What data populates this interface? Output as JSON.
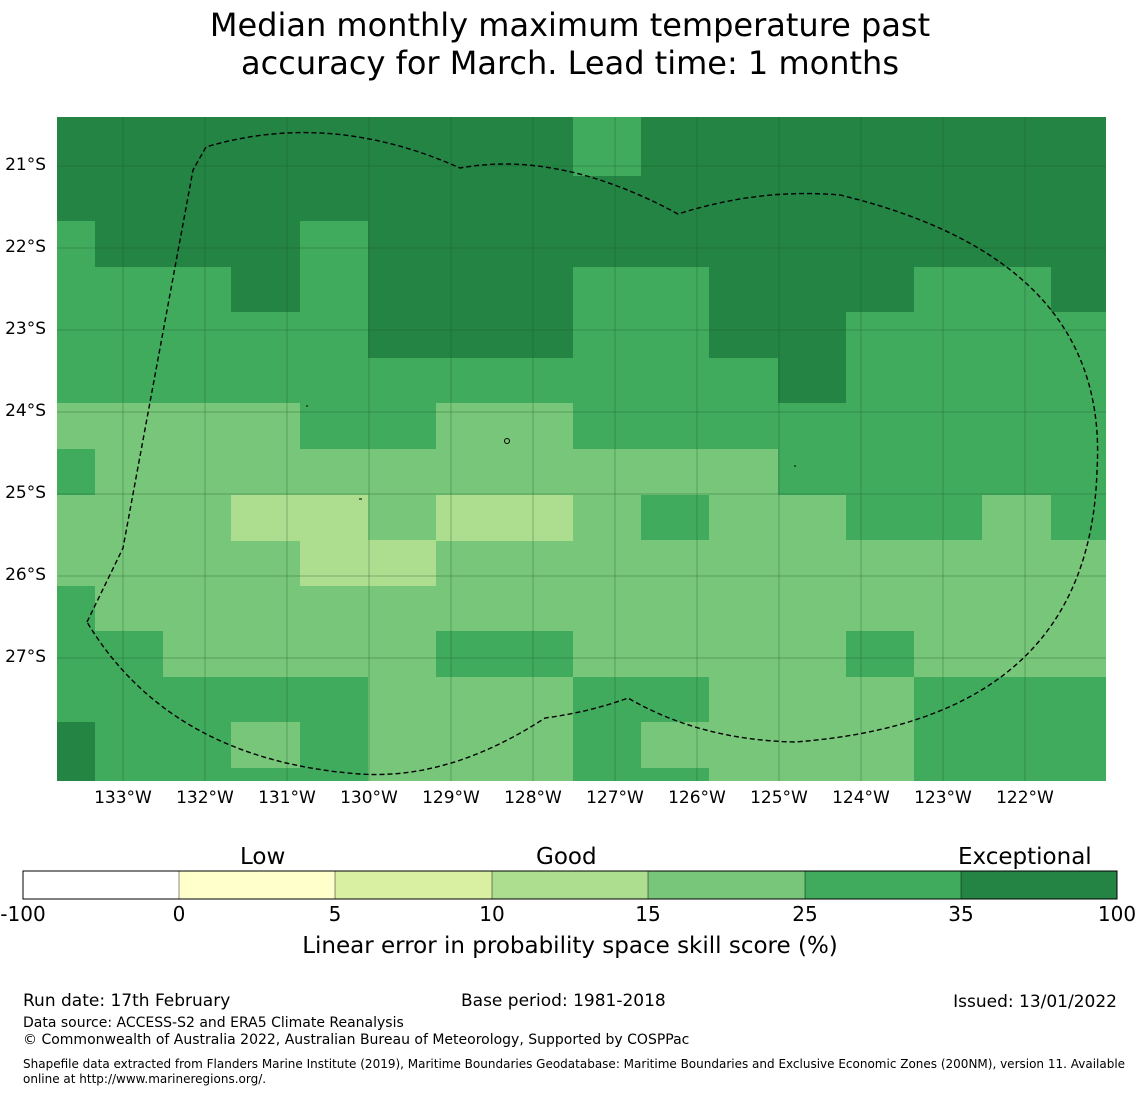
{
  "title": {
    "line1": "Median monthly maximum temperature past",
    "line2": "accuracy for March. Lead time: 1 months"
  },
  "map": {
    "lat_labels": [
      "21°S",
      "22°S",
      "23°S",
      "24°S",
      "25°S",
      "26°S",
      "27°S"
    ],
    "lon_labels": [
      "133°W",
      "132°W",
      "131°W",
      "130°W",
      "129°W",
      "128°W",
      "127°W",
      "126°W",
      "125°W",
      "124°W",
      "123°W",
      "122°W"
    ],
    "boundary": "Exclusive Economic Zone boundary (dashed)"
  },
  "colorbar": {
    "words": [
      "Low",
      "Good",
      "Exceptional"
    ],
    "ticks": [
      "-100",
      "0",
      "5",
      "10",
      "15",
      "25",
      "35",
      "100"
    ],
    "colors": [
      "#ffffff",
      "#ffffcc",
      "#d9f0a3",
      "#addd8e",
      "#78c679",
      "#41ab5d",
      "#238443"
    ],
    "label": "Linear error in probability space skill score (%)"
  },
  "footer": {
    "run_date": "Run date: 17th February",
    "base_period": "Base period: 1981-2018",
    "issued": "Issued: 13/01/2022",
    "data_source": "Data source: ACCESS-S2 and ERA5 Climate Reanalysis",
    "copyright": "© Commonwealth of Australia 2022, Australian Bureau of Meteorology, Supported by COSPPac",
    "shapefile": "Shapefile data extracted from Flanders Marine Institute (2019), Maritime Boundaries Geodatabase: Maritime Boundaries and Exclusive Economic Zones (200NM), version 11. Available online at http://www.marineregions.org/."
  }
}
